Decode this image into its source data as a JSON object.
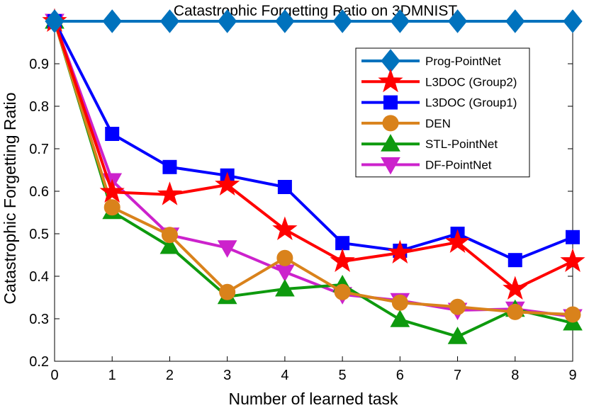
{
  "chart_data": {
    "type": "line",
    "title": "Catastrophic Forgetting Ratio on 3DMNIST",
    "xlabel": "Number of learned task",
    "ylabel": "Catastrophic Forgetting Ratio",
    "x": [
      0,
      1,
      2,
      3,
      4,
      5,
      6,
      7,
      8,
      9
    ],
    "xlim": [
      0,
      9
    ],
    "ylim": [
      0.2,
      1.0
    ],
    "xticks": [
      0,
      1,
      2,
      3,
      4,
      5,
      6,
      7,
      8,
      9
    ],
    "yticks": [
      0.2,
      0.3,
      0.4,
      0.5,
      0.6,
      0.7,
      0.8,
      0.9
    ],
    "ytick_labels": [
      "0.2",
      "0.3",
      "0.4",
      "0.5",
      "0.6",
      "0.7",
      "0.8",
      "0.9"
    ],
    "grid": false,
    "legend_position": "top-right",
    "series": [
      {
        "name": "Prog-PointNet",
        "color": "#0072BD",
        "marker": "diamond",
        "values": [
          1.0,
          1.0,
          1.0,
          1.0,
          1.0,
          1.0,
          1.0,
          1.0,
          1.0,
          1.0
        ]
      },
      {
        "name": "L3DOC (Group2)",
        "color": "#FF0000",
        "marker": "star",
        "values": [
          1.0,
          0.598,
          0.592,
          0.615,
          0.51,
          0.435,
          0.455,
          0.48,
          0.37,
          0.435
        ]
      },
      {
        "name": "L3DOC (Group1)",
        "color": "#0000FF",
        "marker": "square",
        "values": [
          1.0,
          0.735,
          0.657,
          0.637,
          0.61,
          0.478,
          0.46,
          0.5,
          0.438,
          0.492
        ]
      },
      {
        "name": "DEN",
        "color": "#D9821B",
        "marker": "circle",
        "values": [
          1.0,
          0.562,
          0.497,
          0.363,
          0.443,
          0.363,
          0.338,
          0.328,
          0.316,
          0.31
        ]
      },
      {
        "name": "STL-PointNet",
        "color": "#0E9A0E",
        "marker": "triangle-up",
        "values": [
          1.0,
          0.552,
          0.47,
          0.352,
          0.37,
          0.38,
          0.298,
          0.258,
          0.322,
          0.29
        ]
      },
      {
        "name": "DF-PointNet",
        "color": "#CC22CC",
        "marker": "triangle-down",
        "values": [
          1.0,
          0.625,
          0.497,
          0.467,
          0.41,
          0.357,
          0.343,
          0.32,
          0.323,
          0.305
        ]
      }
    ]
  }
}
